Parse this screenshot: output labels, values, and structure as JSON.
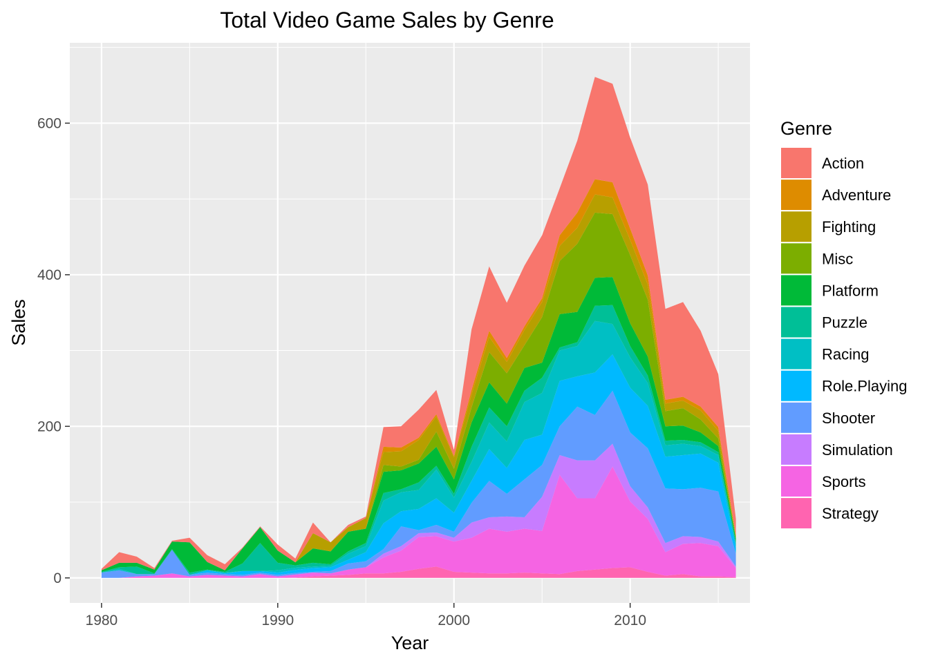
{
  "chart_data": {
    "type": "area",
    "stacked": true,
    "title": "Total Video Game Sales by Genre",
    "xlabel": "Year",
    "ylabel": "Sales",
    "xlim": [
      1978.2,
      2016.8
    ],
    "ylim": [
      -33,
      706
    ],
    "xticks": [
      1980,
      1990,
      2000,
      2010
    ],
    "yticks": [
      0,
      200,
      400,
      600
    ],
    "grid": true,
    "panel_background": "#ebebeb",
    "legend": {
      "title": "Genre",
      "position": "right"
    },
    "x": [
      1980,
      1981,
      1982,
      1983,
      1984,
      1985,
      1986,
      1987,
      1988,
      1989,
      1990,
      1991,
      1992,
      1993,
      1994,
      1995,
      1996,
      1997,
      1998,
      1999,
      2000,
      2001,
      2002,
      2003,
      2004,
      2005,
      2006,
      2007,
      2008,
      2009,
      2010,
      2011,
      2012,
      2013,
      2014,
      2015,
      2016
    ],
    "series": [
      {
        "name": "Strategy",
        "color": "#FF64B0",
        "values": [
          0,
          0,
          0,
          0,
          0,
          0,
          0,
          0,
          0,
          0,
          0,
          0.5,
          2,
          3,
          4,
          6,
          6,
          8,
          12,
          15,
          8,
          7,
          6,
          6,
          7,
          6,
          5,
          9,
          11,
          13,
          14,
          8,
          3,
          5,
          2,
          2,
          1
        ]
      },
      {
        "name": "Sports",
        "color": "#F564E3",
        "values": [
          0,
          0,
          2,
          3,
          6,
          2,
          4,
          3,
          2,
          5,
          2,
          4,
          5,
          3,
          7,
          8,
          21,
          28,
          42,
          40,
          40,
          46,
          59,
          55,
          58,
          56,
          131,
          96,
          94,
          134,
          87,
          70,
          31,
          40,
          44,
          40,
          12
        ]
      },
      {
        "name": "Simulation",
        "color": "#C77CFF",
        "values": [
          0,
          0,
          0,
          0,
          0,
          0,
          0,
          0,
          0,
          0,
          0,
          0,
          0,
          0,
          0,
          0,
          5,
          6,
          5,
          5,
          5,
          20,
          15,
          20,
          15,
          45,
          26,
          50,
          50,
          30,
          20,
          15,
          12,
          10,
          8,
          6,
          2
        ]
      },
      {
        "name": "Shooter",
        "color": "#619CFF",
        "values": [
          7,
          10,
          3,
          2,
          31,
          2,
          3,
          2,
          2,
          2,
          2,
          2,
          1,
          3,
          8,
          8,
          6,
          26,
          4,
          10,
          8,
          26,
          48,
          30,
          50,
          42,
          38,
          71,
          60,
          70,
          71,
          78,
          72,
          62,
          65,
          66,
          17
        ]
      },
      {
        "name": "Role.Playing",
        "color": "#00B9FF",
        "values": [
          0,
          0,
          0,
          0,
          0,
          0,
          3,
          1,
          5,
          2,
          3,
          4,
          5,
          5,
          5,
          12,
          34,
          20,
          28,
          35,
          25,
          29,
          42,
          34,
          52,
          40,
          60,
          40,
          56,
          48,
          59,
          56,
          42,
          45,
          45,
          38,
          8
        ]
      },
      {
        "name": "Racing",
        "color": "#00BFC4",
        "values": [
          0,
          2,
          0,
          0,
          0,
          0,
          0,
          1,
          0,
          0,
          3,
          3,
          2,
          2,
          8,
          8,
          30,
          25,
          25,
          38,
          20,
          25,
          35,
          35,
          50,
          55,
          40,
          40,
          68,
          40,
          40,
          30,
          15,
          15,
          10,
          10,
          5
        ]
      },
      {
        "name": "Puzzle",
        "color": "#00BF97",
        "values": [
          1,
          2,
          10,
          1,
          1,
          3,
          1,
          1,
          10,
          37,
          10,
          3,
          5,
          2,
          3,
          4,
          10,
          4,
          10,
          5,
          5,
          20,
          20,
          20,
          15,
          20,
          4,
          5,
          20,
          25,
          15,
          10,
          6,
          5,
          5,
          4,
          2
        ]
      },
      {
        "name": "Platform",
        "color": "#00BA38",
        "values": [
          2,
          6,
          5,
          5,
          10,
          40,
          10,
          2,
          20,
          21,
          16,
          4,
          19,
          17,
          26,
          19,
          28,
          25,
          25,
          25,
          19,
          32,
          33,
          30,
          30,
          20,
          44,
          40,
          37,
          37,
          30,
          25,
          19,
          19,
          13,
          8,
          5
        ]
      },
      {
        "name": "Misc",
        "color": "#7CAE00",
        "values": [
          0,
          0,
          0,
          0,
          0,
          0,
          0,
          0,
          0,
          0,
          0,
          0,
          0,
          0,
          0,
          0,
          9,
          5,
          5,
          20,
          14,
          20,
          40,
          40,
          30,
          60,
          70,
          90,
          86,
          83,
          90,
          75,
          20,
          23,
          17,
          10,
          1
        ]
      },
      {
        "name": "Fighting",
        "color": "#B79F00",
        "values": [
          0,
          0,
          0,
          0,
          0,
          0,
          0,
          0,
          0,
          0,
          0,
          0,
          20,
          12,
          6,
          14,
          17,
          20,
          26,
          20,
          15,
          17,
          20,
          15,
          20,
          20,
          20,
          21,
          24,
          22,
          20,
          20,
          10,
          10,
          12,
          10,
          2
        ]
      },
      {
        "name": "Adventure",
        "color": "#DE8C00",
        "values": [
          0,
          0,
          0,
          0,
          0,
          0,
          0,
          0,
          0,
          0,
          0,
          0,
          0,
          0,
          0,
          0,
          7,
          5,
          3,
          3,
          2,
          6,
          8,
          5,
          5,
          5,
          14,
          20,
          20,
          20,
          15,
          12,
          5,
          5,
          5,
          5,
          2
        ]
      },
      {
        "name": "Action",
        "color": "#F8766D",
        "values": [
          2,
          14,
          8,
          2,
          1,
          6,
          9,
          8,
          1,
          1,
          8,
          5,
          14,
          0,
          3,
          2,
          26,
          28,
          37,
          32,
          8,
          80,
          85,
          73,
          80,
          83,
          62,
          95,
          135,
          130,
          120,
          120,
          120,
          125,
          100,
          70,
          21
        ]
      }
    ],
    "legend_order": [
      "Action",
      "Adventure",
      "Fighting",
      "Misc",
      "Platform",
      "Puzzle",
      "Racing",
      "Role.Playing",
      "Shooter",
      "Simulation",
      "Sports",
      "Strategy"
    ]
  }
}
